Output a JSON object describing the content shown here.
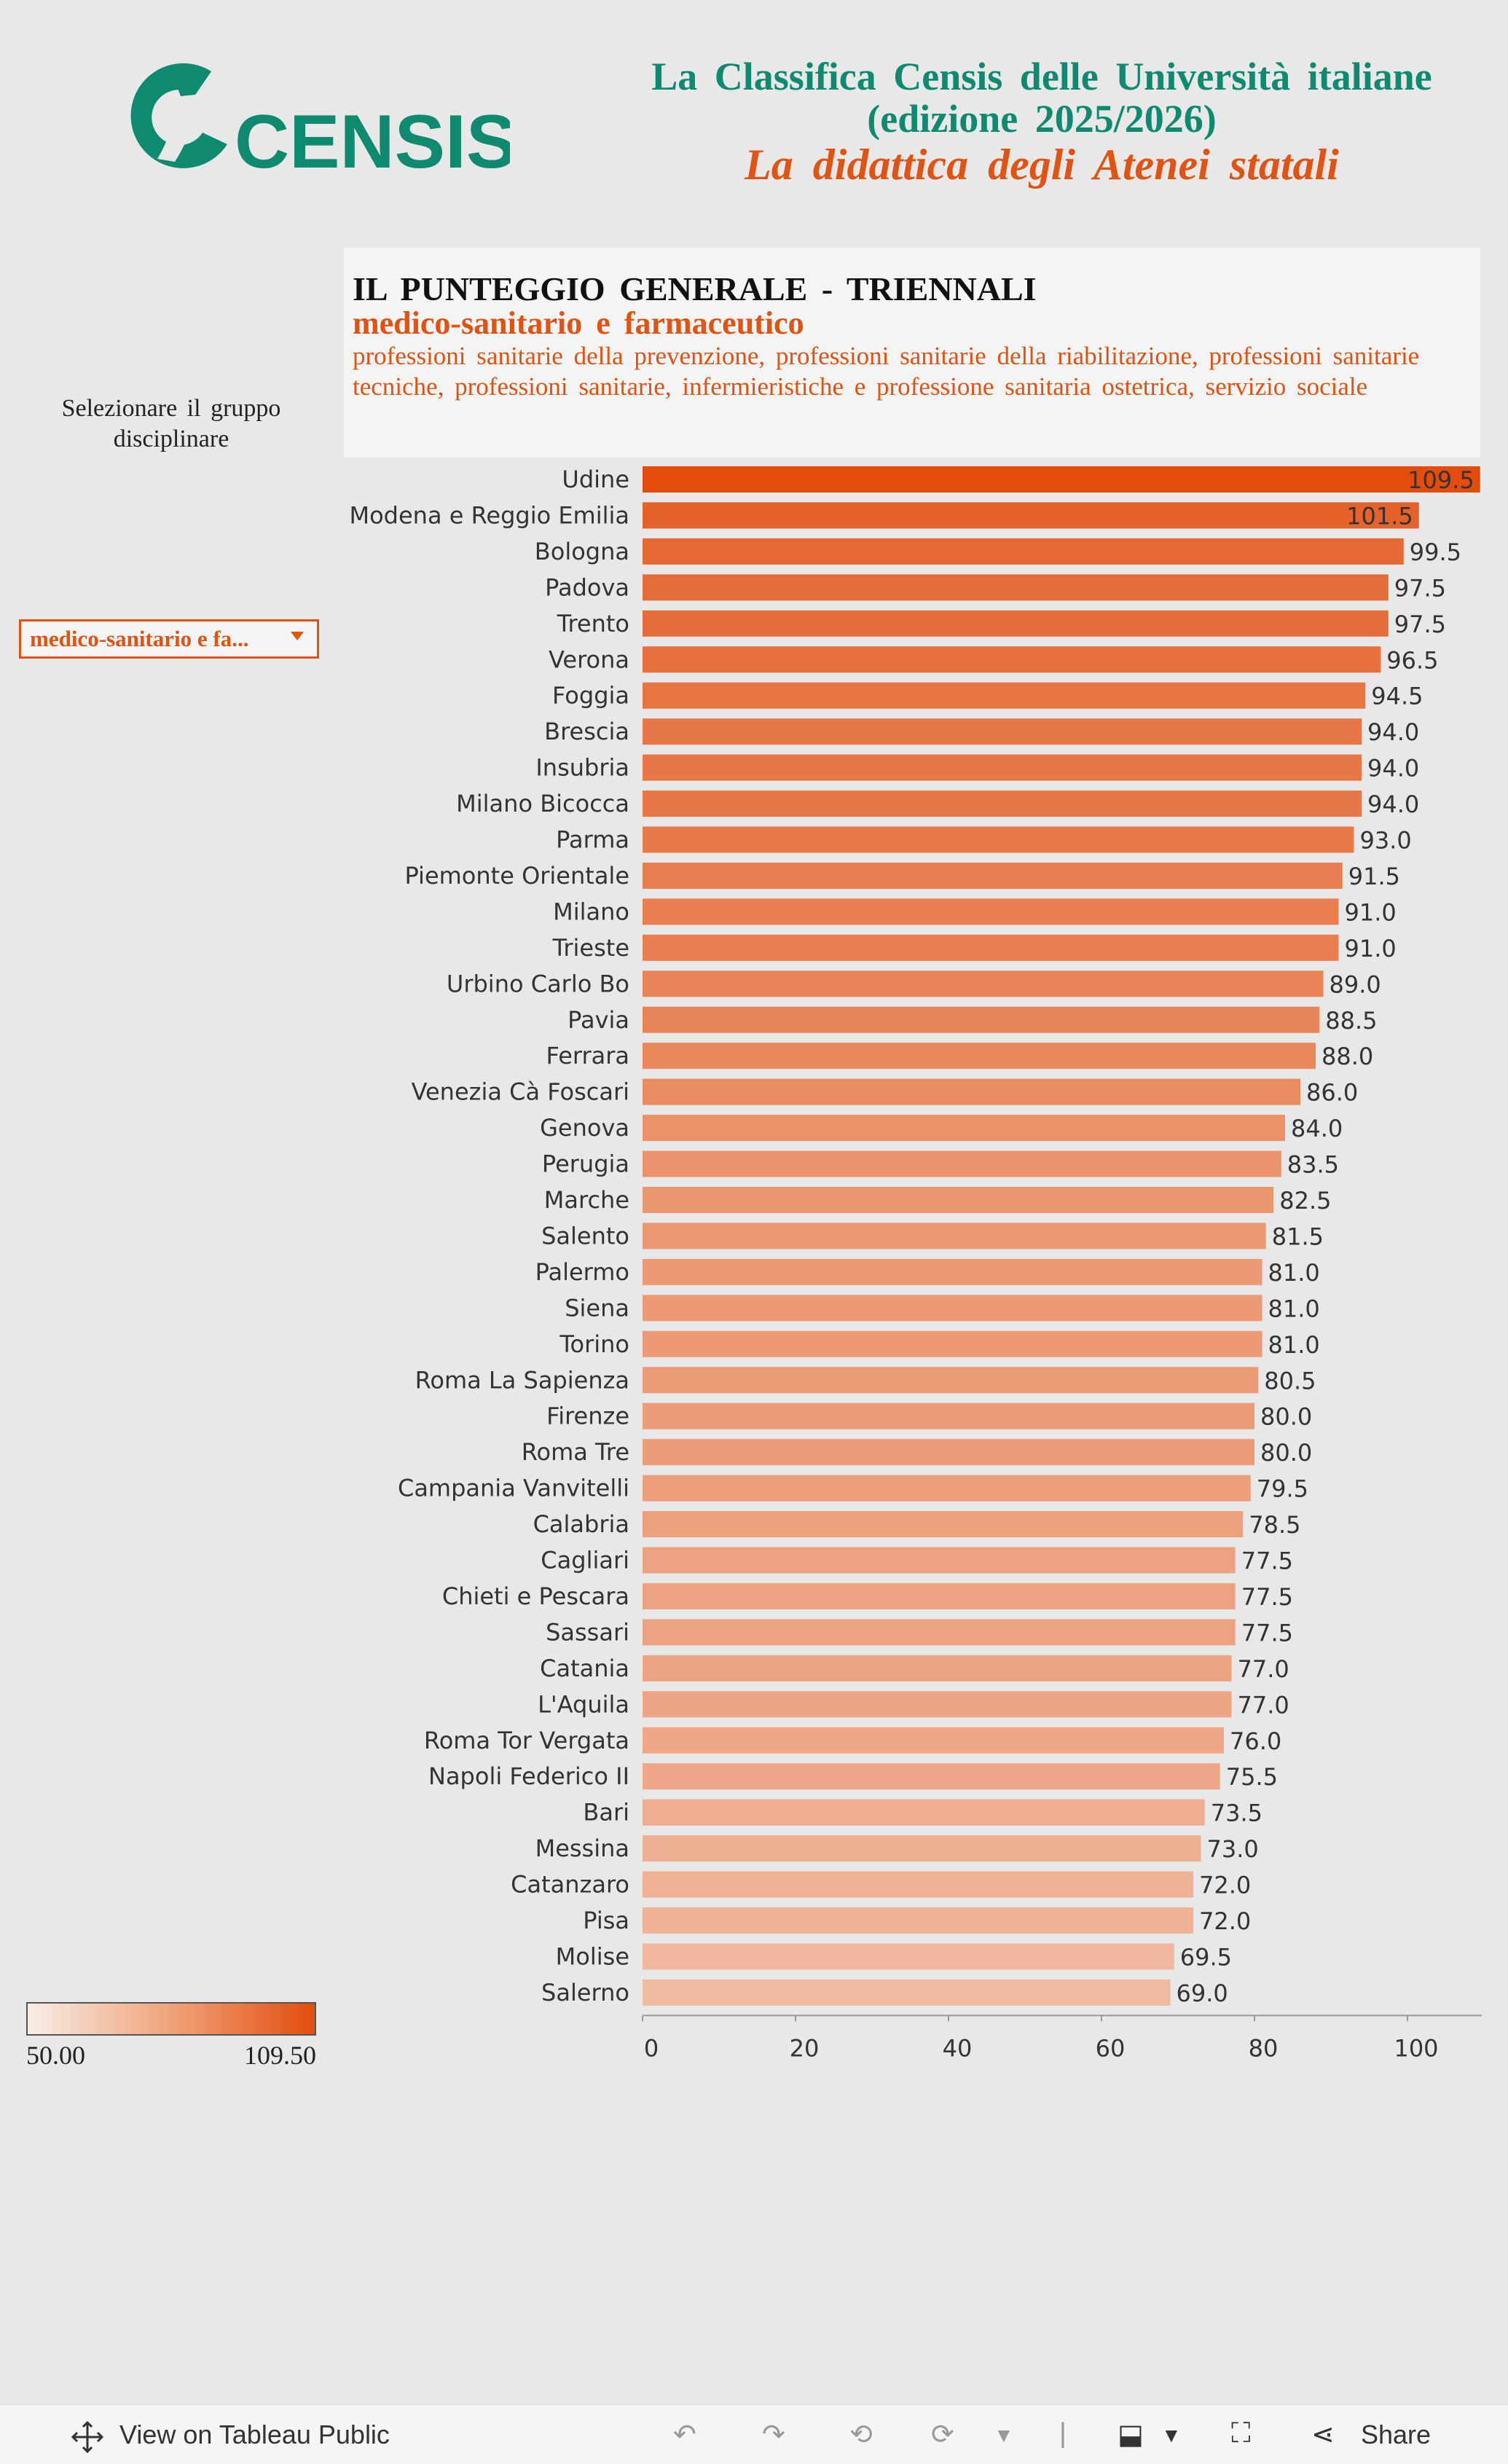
{
  "header": {
    "brand": "CENSIS",
    "title_line1": "La Classifica Censis delle Università italiane",
    "title_line2": "(edizione 2025/2026)",
    "subtitle": "La didattica degli Atenei statali"
  },
  "panel": {
    "title": "IL PUNTEGGIO GENERALE - TRIENNALI",
    "group": "medico-sanitario e farmaceutico",
    "description": "professioni sanitarie della prevenzione, professioni sanitarie della riabilitazione, professioni sanitarie tecniche, professioni sanitarie, infermieristiche e professione sanitaria ostetrica, servizio sociale"
  },
  "filter": {
    "label_line1": "Selezionare il gruppo",
    "label_line2": "disciplinare",
    "selected": "medico-sanitario e fa..."
  },
  "legend": {
    "min": "50.00",
    "max": "109.50",
    "color_low": "#f7ede5",
    "color_high": "#e24d0e"
  },
  "toolbar": {
    "view_label": "View on Tableau Public",
    "share_label": "Share"
  },
  "chart_data": {
    "type": "bar",
    "orientation": "horizontal",
    "categories": [
      "Udine",
      "Modena e Reggio Emilia",
      "Bologna",
      "Padova",
      "Trento",
      "Verona",
      "Foggia",
      "Brescia",
      "Insubria",
      "Milano Bicocca",
      "Parma",
      "Piemonte Orientale",
      "Milano",
      "Trieste",
      "Urbino Carlo Bo",
      "Pavia",
      "Ferrara",
      "Venezia Cà Foscari",
      "Genova",
      "Perugia",
      "Marche",
      "Salento",
      "Palermo",
      "Siena",
      "Torino",
      "Roma La Sapienza",
      "Firenze",
      "Roma Tre",
      "Campania Vanvitelli",
      "Calabria",
      "Cagliari",
      "Chieti e Pescara",
      "Sassari",
      "Catania",
      "L'Aquila",
      "Roma Tor Vergata",
      "Napoli Federico II",
      "Bari",
      "Messina",
      "Catanzaro",
      "Pisa",
      "Molise",
      "Salerno"
    ],
    "values": [
      109.5,
      101.5,
      99.5,
      97.5,
      97.5,
      96.5,
      94.5,
      94.0,
      94.0,
      94.0,
      93.0,
      91.5,
      91.0,
      91.0,
      89.0,
      88.5,
      88.0,
      86.0,
      84.0,
      83.5,
      82.5,
      81.5,
      81.0,
      81.0,
      81.0,
      80.5,
      80.0,
      80.0,
      79.5,
      78.5,
      77.5,
      77.5,
      77.5,
      77.0,
      77.0,
      76.0,
      75.5,
      73.5,
      73.0,
      72.0,
      72.0,
      69.5,
      69.0
    ],
    "value_labels": [
      "109.5",
      "101.5",
      "99.5",
      "97.5",
      "97.5",
      "96.5",
      "94.5",
      "94.0",
      "94.0",
      "94.0",
      "93.0",
      "91.5",
      "91.0",
      "91.0",
      "89.0",
      "88.5",
      "88.0",
      "86.0",
      "84.0",
      "83.5",
      "82.5",
      "81.5",
      "81.0",
      "81.0",
      "81.0",
      "80.5",
      "80.0",
      "80.0",
      "79.5",
      "78.5",
      "77.5",
      "77.5",
      "77.5",
      "77.0",
      "77.0",
      "76.0",
      "75.5",
      "73.5",
      "73.0",
      "72.0",
      "72.0",
      "69.5",
      "69.0"
    ],
    "xticks": [
      "0",
      "20",
      "40",
      "60",
      "80",
      "100"
    ],
    "xlim": [
      0,
      110
    ],
    "grid": false,
    "color_scale": {
      "min": 50.0,
      "max": 109.5
    }
  }
}
